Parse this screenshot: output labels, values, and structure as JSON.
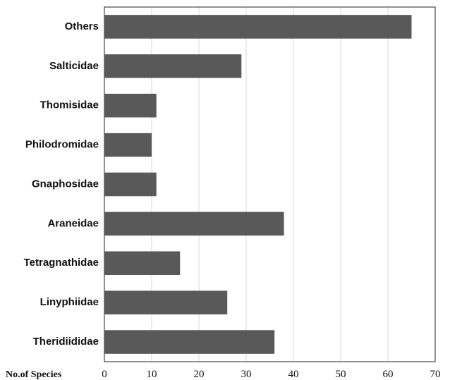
{
  "chart_data": {
    "type": "bar",
    "orientation": "horizontal",
    "categories": [
      "Others",
      "Salticidae",
      "Thomisidae",
      "Philodromidae",
      "Gnaphosidae",
      "Araneidae",
      "Tetragnathidae",
      "Linyphiidae",
      "Theridiididae"
    ],
    "values": [
      65,
      29,
      11,
      10,
      11,
      38,
      16,
      26,
      36
    ],
    "xlabel": "No.of Species",
    "xlim": [
      0,
      70
    ],
    "xticks": [
      0,
      10,
      20,
      30,
      40,
      50,
      60,
      70
    ],
    "grid": true,
    "bar_color": "#595959"
  }
}
